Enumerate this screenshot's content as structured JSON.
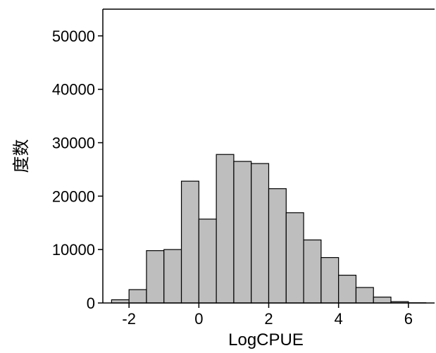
{
  "chart_data": {
    "type": "bar",
    "subtype": "histogram",
    "xlabel": "LogCPUE",
    "ylabel": "度数",
    "xlim": [
      -2.75,
      6.75
    ],
    "ylim": [
      0,
      55000
    ],
    "xticks": [
      -2,
      0,
      2,
      4,
      6
    ],
    "xtick_labels": [
      "-2",
      "0",
      "2",
      "4",
      "6"
    ],
    "yticks": [
      0,
      10000,
      20000,
      30000,
      40000,
      50000
    ],
    "ytick_labels": [
      "0",
      "10000",
      "20000",
      "30000",
      "40000",
      "50000"
    ],
    "bin_width": 0.5,
    "bins": [
      {
        "x0": -2.5,
        "x1": -2.0,
        "count": 600
      },
      {
        "x0": -2.0,
        "x1": -1.5,
        "count": 2500
      },
      {
        "x0": -1.5,
        "x1": -1.0,
        "count": 9800
      },
      {
        "x0": -1.0,
        "x1": -0.5,
        "count": 10000
      },
      {
        "x0": -0.5,
        "x1": 0.0,
        "count": 22800
      },
      {
        "x0": 0.0,
        "x1": 0.5,
        "count": 15700
      },
      {
        "x0": 0.5,
        "x1": 1.0,
        "count": 27800
      },
      {
        "x0": 1.0,
        "x1": 1.5,
        "count": 26500
      },
      {
        "x0": 1.5,
        "x1": 2.0,
        "count": 26100
      },
      {
        "x0": 2.0,
        "x1": 2.5,
        "count": 21400
      },
      {
        "x0": 2.5,
        "x1": 3.0,
        "count": 16900
      },
      {
        "x0": 3.0,
        "x1": 3.5,
        "count": 11800
      },
      {
        "x0": 3.5,
        "x1": 4.0,
        "count": 8500
      },
      {
        "x0": 4.0,
        "x1": 4.5,
        "count": 5200
      },
      {
        "x0": 4.5,
        "x1": 5.0,
        "count": 2900
      },
      {
        "x0": 5.0,
        "x1": 5.5,
        "count": 1100
      },
      {
        "x0": 5.5,
        "x1": 6.0,
        "count": 250
      },
      {
        "x0": 6.0,
        "x1": 6.5,
        "count": 40
      }
    ],
    "bar_color": "#bebebe",
    "edge_color": "#000000",
    "grid": false,
    "legend": "none"
  }
}
